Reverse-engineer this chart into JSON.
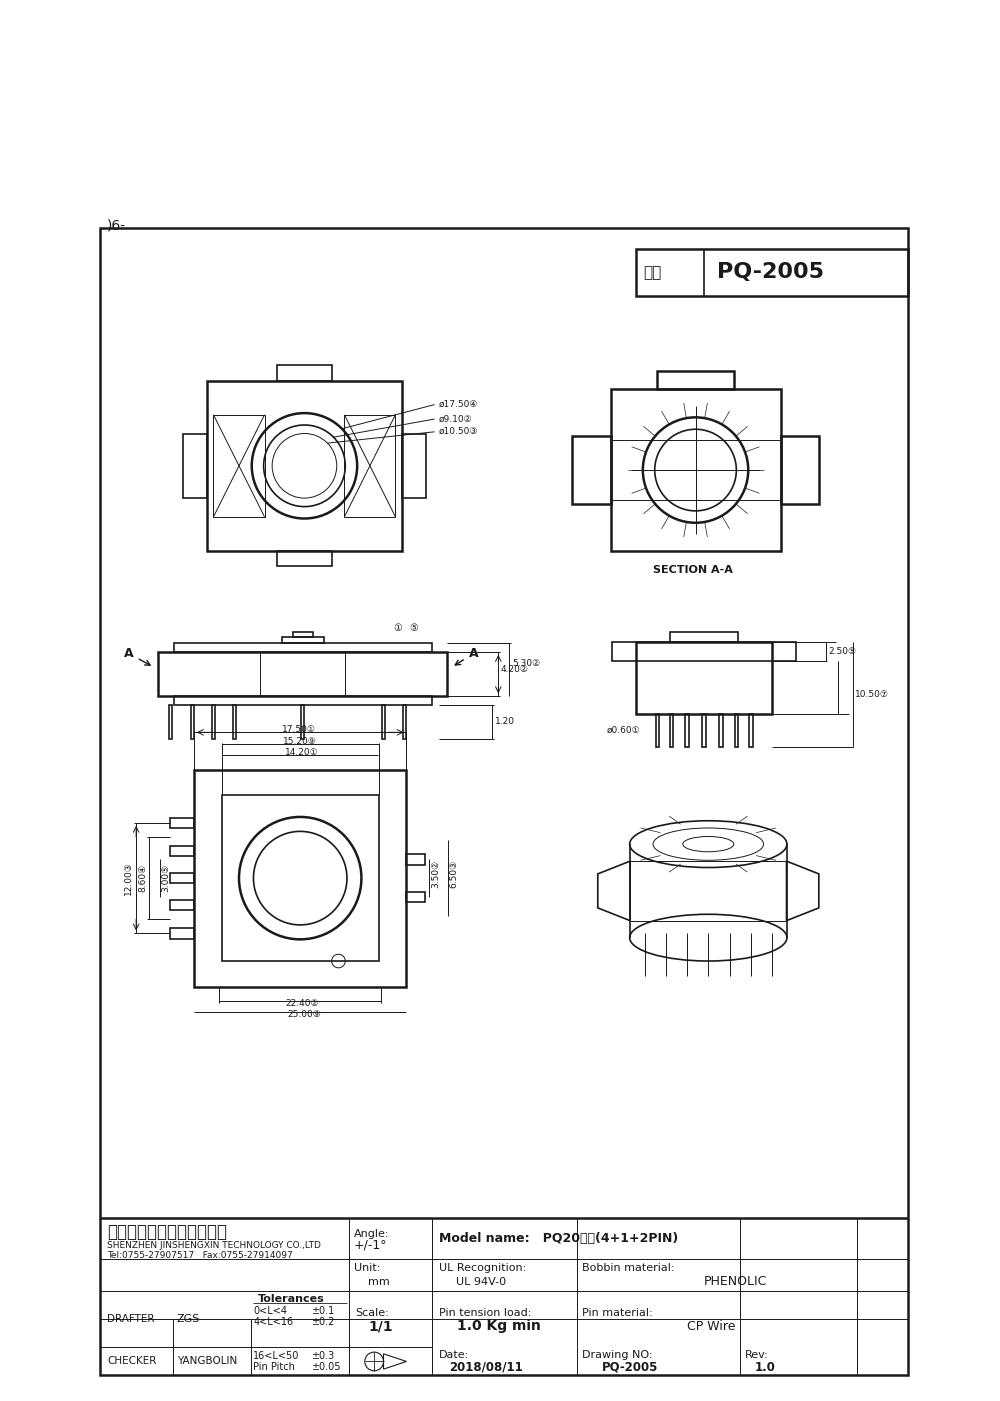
{
  "page_bg": "#ffffff",
  "line_color": "#1a1a1a",
  "header_note": ")6-",
  "title_label": "型号",
  "title_value": "PQ-2005",
  "company_cn": "深圳市金盛鑫科技有限公司",
  "company_en": "SHENZHEN JINSHENGXIN TECHNOLOGY CO.,LTD",
  "contact": "Tel:0755-27907517   Fax:0755-27914097",
  "angle_label": "Angle:",
  "angle_val": "+/-1°",
  "model_name": "Model name:   PQ20立式(4+1+2PIN)",
  "unit_label": "Unit:",
  "unit_val": "mm",
  "ul_label": "UL Recognition:",
  "ul_val": "UL 94V-0",
  "bobbin_label": "Bobbin material:",
  "bobbin_val": "PHENOLIC",
  "drafter_label": "DRAFTER",
  "drafter_name": "ZGS",
  "checker_label": "CHECKER",
  "checker_name": "YANGBOLIN",
  "tol_title": "Tolerances",
  "tol_rows": [
    [
      "0<L<4",
      "±0.1"
    ],
    [
      "4<L<16",
      "±0.2"
    ],
    [
      "16<L<50",
      "±0.3"
    ],
    [
      "Pin Pitch",
      "±0.05"
    ]
  ],
  "scale_label": "Scale:",
  "scale_val": "1/1",
  "pin_tension_label": "Pin tension load:",
  "pin_tension_val": "1.0 Kg min",
  "pin_material_label": "Pin material:",
  "pin_material_val": "CP Wire",
  "date_label": "Date:",
  "date_val": "2018/08/11",
  "drawing_no_label": "Drawing NO:",
  "drawing_no_val": "PQ-2005",
  "rev_label": "Rev:",
  "rev_val": "1.0",
  "section_label": "SECTION A-A"
}
